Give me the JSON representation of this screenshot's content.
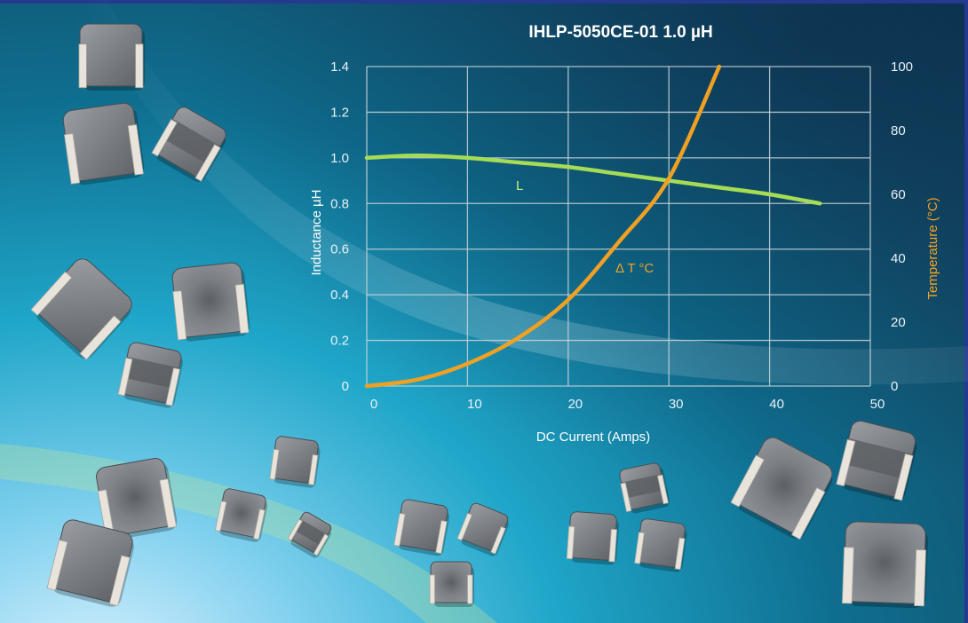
{
  "chart_data": {
    "type": "line",
    "title": "IHLP-5050CE-01 1.0 µH",
    "xlabel": "DC Current (Amps)",
    "ylabel": "Inductance µH",
    "y2label": "Temperature (°C)",
    "xlim": [
      0,
      50
    ],
    "ylim": [
      0,
      1.4
    ],
    "y2lim": [
      0,
      100
    ],
    "x_ticks": [
      "0",
      "10",
      "20",
      "30",
      "40",
      "50"
    ],
    "y_ticks": [
      "0",
      "0.2",
      "0.4",
      "0.6",
      "0.8",
      "1.0",
      "1.2",
      "1.4"
    ],
    "y2_ticks": [
      "0",
      "20",
      "40",
      "60",
      "80",
      "100"
    ],
    "grid": true,
    "series": [
      {
        "name": "L",
        "axis": "left",
        "color": "#a6dc55",
        "x": [
          0,
          5,
          10,
          15,
          20,
          25,
          30,
          35,
          40,
          45
        ],
        "y": [
          1.0,
          1.01,
          1.0,
          0.98,
          0.96,
          0.93,
          0.9,
          0.87,
          0.84,
          0.8
        ]
      },
      {
        "name": "Δ T °C",
        "axis": "right",
        "color": "#f0a023",
        "x": [
          0,
          5,
          10,
          15,
          20,
          25,
          30,
          35
        ],
        "y": [
          0,
          2,
          7,
          15,
          27,
          45,
          65,
          100
        ]
      }
    ]
  },
  "labels": {
    "title": "IHLP-5050CE-01 1.0 µH",
    "xlabel": "DC Current (Amps)",
    "ylabel": "Inductance µH",
    "y2label": "Temperature (°C)",
    "series_L": "L",
    "series_T": "Δ T °C"
  },
  "colors": {
    "background": "#0f6f90",
    "grid": "#c8d4d8",
    "inductance": "#a6dc55",
    "temperature": "#f0a023"
  },
  "decor": {
    "objects": "inductor-component-photos"
  }
}
